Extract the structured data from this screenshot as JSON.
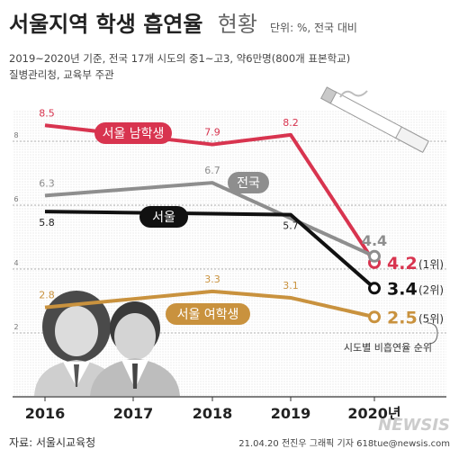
{
  "header": {
    "title": "서울지역 학생 흡연율",
    "title_light": "현황",
    "unit": "단위: %, 전국 대비",
    "subtitle_line1": "2019~2020년 기준, 전국 17개 시도의 중1~고3, 약6만명(800개 표본학교)",
    "subtitle_line2": "질병관리청, 교육부 주관"
  },
  "footer": {
    "source": "자료: 서울시교육청",
    "credit": "21.04.20 전진우 그래픽 기자 618tue@newsis.com",
    "watermark": "NEWSIS"
  },
  "rank_note": "시도별 비흡연율 순위",
  "chart_data": {
    "type": "line",
    "x": [
      "2016",
      "2017",
      "2018",
      "2019",
      "2020년"
    ],
    "ylim": [
      0,
      9
    ],
    "y_ticks": [
      "2",
      "4",
      "6",
      "8"
    ],
    "grid": true,
    "series": [
      {
        "name": "서울 남학생",
        "color": "#d8344f",
        "values": [
          8.5,
          null,
          7.9,
          8.2,
          4.2
        ],
        "labels": [
          "8.5",
          "",
          "7.9",
          "8.2",
          "4.2"
        ],
        "rank": "(1위)"
      },
      {
        "name": "전국",
        "color": "#8e8e8e",
        "values": [
          6.3,
          null,
          6.7,
          null,
          4.4
        ],
        "labels": [
          "6.3",
          "",
          "6.7",
          "",
          "4.4"
        ],
        "rank": ""
      },
      {
        "name": "서울",
        "color": "#111111",
        "values": [
          5.8,
          null,
          null,
          5.7,
          3.4
        ],
        "labels": [
          "5.8",
          "",
          "",
          "5.7",
          "3.4"
        ],
        "rank": "(2위)"
      },
      {
        "name": "서울 여학생",
        "color": "#c9923e",
        "values": [
          2.8,
          null,
          3.3,
          3.1,
          2.5
        ],
        "labels": [
          "2.8",
          "",
          "3.3",
          "3.1",
          "2.5"
        ],
        "rank": "(5위)"
      }
    ]
  }
}
